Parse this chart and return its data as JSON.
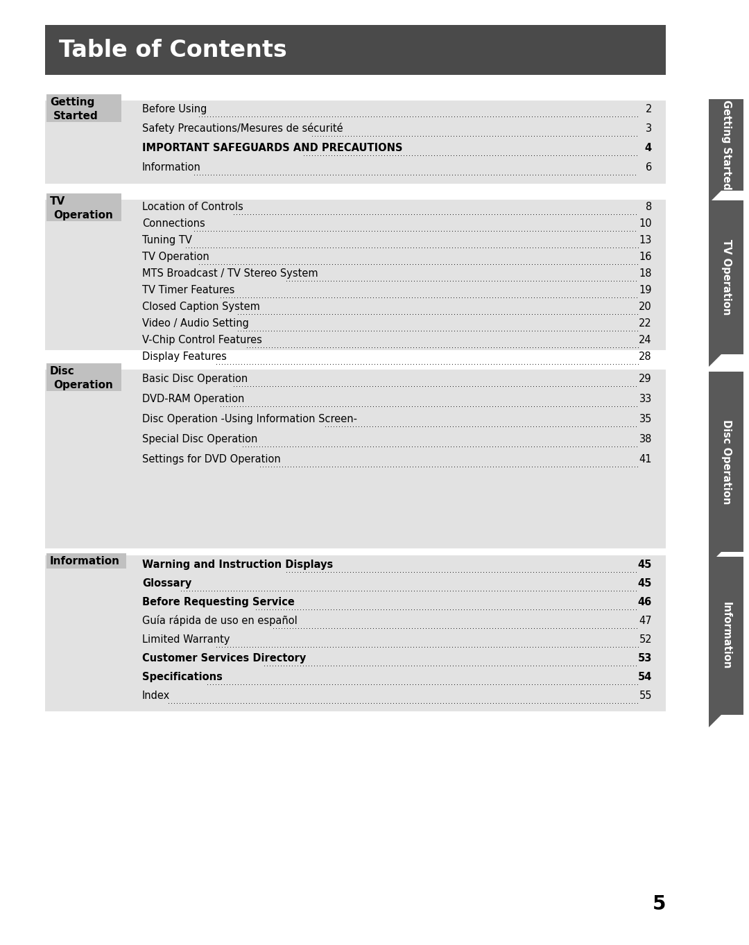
{
  "title": "Table of Contents",
  "title_bg": "#4a4a4a",
  "title_color": "#ffffff",
  "page_bg": "#ffffff",
  "section_bg": "#e2e2e2",
  "tab_bg": "#595959",
  "tab_text_color": "#ffffff",
  "footer_number": "5",
  "sections": [
    {
      "label_line1": "Getting",
      "label_line2": "Started",
      "tab_text": "Getting Started",
      "entries": [
        {
          "text": "Before Using",
          "page": "2",
          "bold": false
        },
        {
          "text": "Safety Precautions/Mesures de sécurité",
          "page": "3",
          "bold": false
        },
        {
          "text": "IMPORTANT SAFEGUARDS AND PRECAUTIONS",
          "page": "4",
          "bold": true
        },
        {
          "text": "Information",
          "page": "6",
          "bold": false
        }
      ]
    },
    {
      "label_line1": "TV",
      "label_line2": "Operation",
      "tab_text": "TV Operation",
      "entries": [
        {
          "text": "Location of Controls",
          "page": "8",
          "bold": false
        },
        {
          "text": "Connections",
          "page": "10",
          "bold": false
        },
        {
          "text": "Tuning TV",
          "page": "13",
          "bold": false
        },
        {
          "text": "TV Operation",
          "page": "16",
          "bold": false
        },
        {
          "text": "MTS Broadcast / TV Stereo System",
          "page": "18",
          "bold": false
        },
        {
          "text": "TV Timer Features",
          "page": "19",
          "bold": false
        },
        {
          "text": "Closed Caption System",
          "page": "20",
          "bold": false
        },
        {
          "text": "Video / Audio Setting",
          "page": "22",
          "bold": false
        },
        {
          "text": "V-Chip Control Features",
          "page": "24",
          "bold": false
        },
        {
          "text": "Display Features",
          "page": "28",
          "bold": false
        }
      ]
    },
    {
      "label_line1": "Disc",
      "label_line2": "Operation",
      "tab_text": "Disc Operation",
      "entries": [
        {
          "text": "Basic Disc Operation",
          "page": "29",
          "bold": false
        },
        {
          "text": "DVD-RAM Operation",
          "page": "33",
          "bold": false
        },
        {
          "text": "Disc Operation -Using Information Screen-",
          "page": "35",
          "bold": false
        },
        {
          "text": "Special Disc Operation",
          "page": "38",
          "bold": false
        },
        {
          "text": "Settings for DVD Operation",
          "page": "41",
          "bold": false
        }
      ]
    },
    {
      "label_line1": "Information",
      "label_line2": "",
      "tab_text": "Information",
      "entries": [
        {
          "text": "Warning and Instruction Displays",
          "page": "45",
          "bold": true
        },
        {
          "text": "Glossary",
          "page": "45",
          "bold": true
        },
        {
          "text": "Before Requesting Service",
          "page": "46",
          "bold": true
        },
        {
          "text": "Guía rápida de uso en español",
          "page": "47",
          "bold": false
        },
        {
          "text": "Limited Warranty",
          "page": "52",
          "bold": false
        },
        {
          "text": "Customer Services Directory",
          "page": "53",
          "bold": true
        },
        {
          "text": "Specifications",
          "page": "54",
          "bold": true
        },
        {
          "text": "Index",
          "page": "55",
          "bold": false
        }
      ]
    }
  ]
}
